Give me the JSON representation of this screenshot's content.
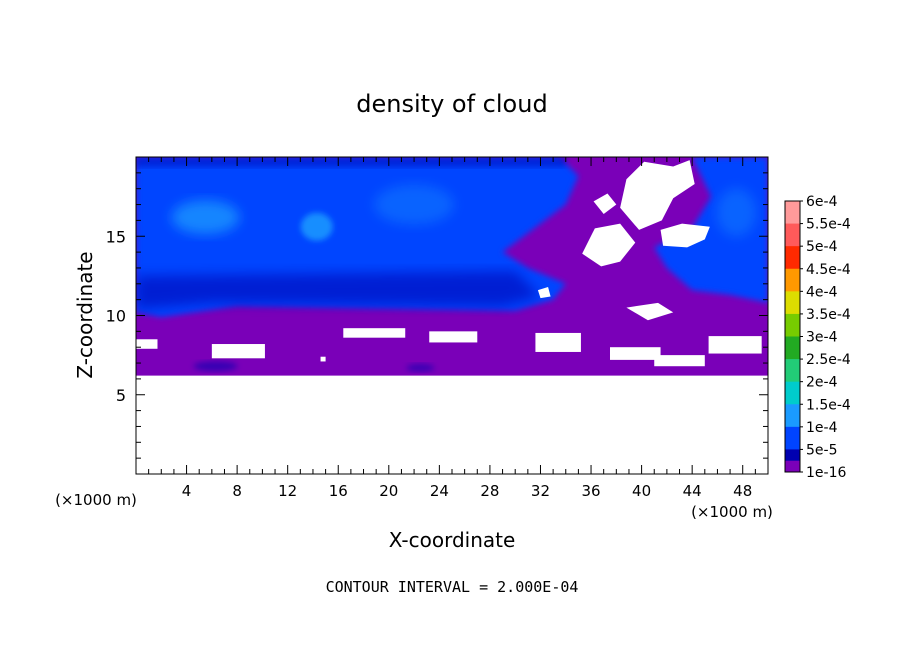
{
  "chart_data": {
    "type": "heatmap",
    "title": "density of cloud",
    "xlabel": "X-coordinate",
    "ylabel": "Z-coordinate",
    "x_unit": "(×1000 m)",
    "y_unit": "(×1000 m)",
    "xlim": [
      0,
      50
    ],
    "ylim": [
      0,
      20
    ],
    "x_ticks": [
      4,
      8,
      12,
      16,
      20,
      24,
      28,
      32,
      36,
      40,
      44,
      48
    ],
    "y_ticks": [
      5,
      10,
      15
    ],
    "footer": "CONTOUR INTERVAL = 2.000E-04",
    "colorbar": {
      "levels": [
        "6e-4",
        "5.5e-4",
        "5e-4",
        "4.5e-4",
        "4e-4",
        "3.5e-4",
        "3e-4",
        "2.5e-4",
        "2e-4",
        "1.5e-4",
        "1e-4",
        "5e-5",
        "1e-16"
      ],
      "colors": [
        "#ff9a9a",
        "#ff5a5a",
        "#ff2a00",
        "#ff9900",
        "#dddd00",
        "#77cc00",
        "#22aa22",
        "#22cc77",
        "#00cccc",
        "#1a9bff",
        "#0044ff",
        "#0000b0",
        "#7a00b8"
      ]
    },
    "regions": [
      {
        "name": "no-cloud-lower",
        "level": "none",
        "x": [
          0,
          50
        ],
        "z": [
          0,
          6.2
        ]
      },
      {
        "name": "thin-cloud-band",
        "level": "1e-16",
        "x": [
          0,
          50
        ],
        "z": [
          6.2,
          10.5
        ]
      },
      {
        "name": "upper-cloud-layer",
        "level": "1e-4",
        "x": [
          0,
          33
        ],
        "z": [
          10.5,
          19.7
        ]
      },
      {
        "name": "upper-cloud-right",
        "level": "1e-4",
        "x": [
          41,
          50
        ],
        "z": [
          10.8,
          19.7
        ]
      },
      {
        "name": "core-1",
        "level": "1.5e-4",
        "x": [
          3,
          10
        ],
        "z": [
          15,
          17.5
        ]
      },
      {
        "name": "core-2",
        "level": "1.5e-4",
        "x": [
          13,
          16
        ],
        "z": [
          14.5,
          16.5
        ]
      }
    ]
  }
}
